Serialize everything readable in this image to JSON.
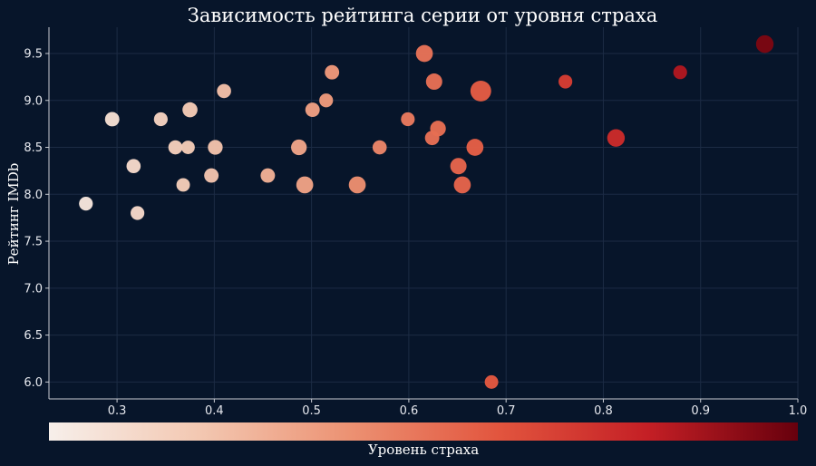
{
  "chart_data": {
    "type": "scatter",
    "title": "Зависимость рейтинга серии от уровня страха",
    "xlabel": "",
    "ylabel": "Рейтинг IMDb",
    "xlim": [
      0.23,
      1.0
    ],
    "ylim": [
      5.82,
      9.78
    ],
    "x_ticks": [
      "0.3",
      "0.4",
      "0.5",
      "0.6",
      "0.7",
      "0.8",
      "0.9",
      "1.0"
    ],
    "y_ticks": [
      "6.0",
      "6.5",
      "7.0",
      "7.5",
      "8.0",
      "8.5",
      "9.0",
      "9.5"
    ],
    "grid": true,
    "colorbar": {
      "label": "Уровень страха",
      "colormap": [
        "#f7efea",
        "#f3c8b2",
        "#ec9273",
        "#e2553e",
        "#c41f25",
        "#67000d"
      ],
      "range": [
        0.23,
        1.0
      ]
    },
    "points": [
      {
        "x": 0.268,
        "y": 7.9,
        "size": 0.3
      },
      {
        "x": 0.295,
        "y": 8.8,
        "size": 0.35
      },
      {
        "x": 0.317,
        "y": 8.3,
        "size": 0.33
      },
      {
        "x": 0.321,
        "y": 7.8,
        "size": 0.3
      },
      {
        "x": 0.345,
        "y": 8.8,
        "size": 0.3
      },
      {
        "x": 0.36,
        "y": 8.5,
        "size": 0.33
      },
      {
        "x": 0.368,
        "y": 8.1,
        "size": 0.28
      },
      {
        "x": 0.373,
        "y": 8.5,
        "size": 0.28
      },
      {
        "x": 0.375,
        "y": 8.9,
        "size": 0.4
      },
      {
        "x": 0.397,
        "y": 8.2,
        "size": 0.35
      },
      {
        "x": 0.401,
        "y": 8.5,
        "size": 0.38
      },
      {
        "x": 0.41,
        "y": 9.1,
        "size": 0.33
      },
      {
        "x": 0.455,
        "y": 8.2,
        "size": 0.35
      },
      {
        "x": 0.487,
        "y": 8.5,
        "size": 0.45
      },
      {
        "x": 0.493,
        "y": 8.1,
        "size": 0.55
      },
      {
        "x": 0.501,
        "y": 8.9,
        "size": 0.35
      },
      {
        "x": 0.515,
        "y": 9.0,
        "size": 0.3
      },
      {
        "x": 0.521,
        "y": 9.3,
        "size": 0.35
      },
      {
        "x": 0.547,
        "y": 8.1,
        "size": 0.55
      },
      {
        "x": 0.57,
        "y": 8.5,
        "size": 0.33
      },
      {
        "x": 0.599,
        "y": 8.8,
        "size": 0.3
      },
      {
        "x": 0.616,
        "y": 9.5,
        "size": 0.55
      },
      {
        "x": 0.624,
        "y": 8.6,
        "size": 0.35
      },
      {
        "x": 0.626,
        "y": 9.2,
        "size": 0.5
      },
      {
        "x": 0.63,
        "y": 8.7,
        "size": 0.45
      },
      {
        "x": 0.651,
        "y": 8.3,
        "size": 0.5
      },
      {
        "x": 0.655,
        "y": 8.1,
        "size": 0.55
      },
      {
        "x": 0.668,
        "y": 8.5,
        "size": 0.55
      },
      {
        "x": 0.674,
        "y": 9.1,
        "size": 0.85
      },
      {
        "x": 0.685,
        "y": 6.0,
        "size": 0.28
      },
      {
        "x": 0.761,
        "y": 9.2,
        "size": 0.3
      },
      {
        "x": 0.813,
        "y": 8.6,
        "size": 0.6
      },
      {
        "x": 0.879,
        "y": 9.3,
        "size": 0.3
      },
      {
        "x": 0.966,
        "y": 9.6,
        "size": 0.6
      }
    ]
  }
}
